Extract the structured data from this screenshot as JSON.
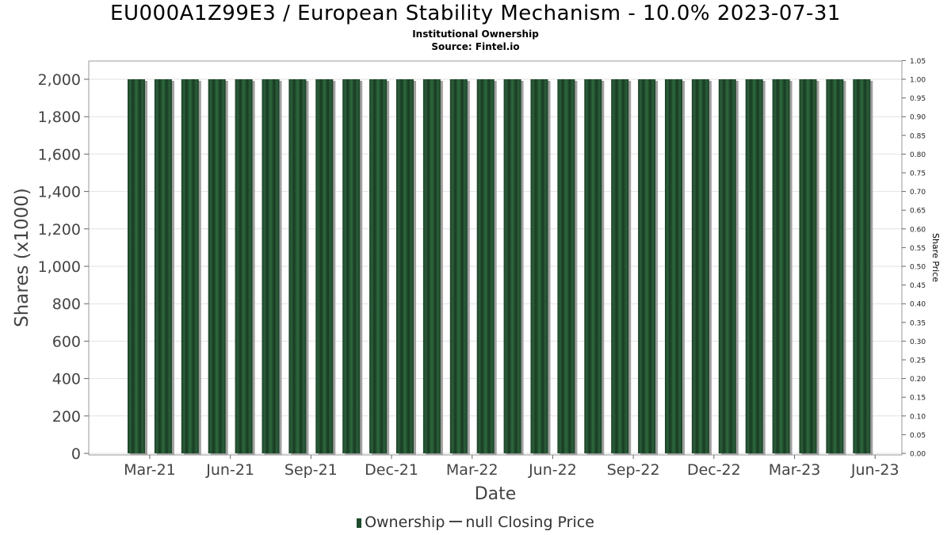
{
  "title": "EU000A1Z99E3 / European Stability Mechanism - 10.0% 2023-07-31",
  "subtitle_lines": [
    "Institutional Ownership",
    "Source: Fintel.io"
  ],
  "legend": {
    "ownership_label": "Ownership",
    "price_label": "null Closing Price"
  },
  "colors": {
    "bar": "#1d4a2a",
    "bar_highlight": "#2f6a3e",
    "bar_shadow": "#a0a0a0",
    "grid": "#e2e2e2",
    "axis": "#888888"
  },
  "chart_data": {
    "type": "bar",
    "title": "EU000A1Z99E3 / European Stability Mechanism - 10.0% 2023-07-31",
    "xlabel": "Date",
    "ylabel": "Shares (x1000)",
    "y2label": "Share Price",
    "ylim": [
      0,
      2100
    ],
    "y2lim": [
      0,
      1.05
    ],
    "y_ticks": [
      0,
      200,
      400,
      600,
      800,
      1000,
      1200,
      1400,
      1600,
      1800,
      2000
    ],
    "y_tick_labels": [
      "0",
      "200",
      "400",
      "600",
      "800",
      "1,000",
      "1,200",
      "1,400",
      "1,600",
      "1,800",
      "2,000"
    ],
    "y2_ticks": [
      0,
      0.05,
      0.1,
      0.15,
      0.2,
      0.25,
      0.3,
      0.35,
      0.4,
      0.45,
      0.5,
      0.55,
      0.6,
      0.65,
      0.7,
      0.75,
      0.8,
      0.85,
      0.9,
      0.95,
      1.0,
      1.05
    ],
    "y2_tick_labels": [
      "0.00",
      "0.05",
      "0.10",
      "0.15",
      "0.20",
      "0.25",
      "0.30",
      "0.35",
      "0.40",
      "0.45",
      "0.50",
      "0.55",
      "0.60",
      "0.65",
      "0.70",
      "0.75",
      "0.80",
      "0.85",
      "0.90",
      "0.95",
      "1.00",
      "1.05"
    ],
    "x_tick_labels": [
      "Mar-21",
      "Jun-21",
      "Sep-21",
      "Dec-21",
      "Mar-22",
      "Jun-22",
      "Sep-22",
      "Dec-22",
      "Mar-23",
      "Jun-23"
    ],
    "x_tick_positions": [
      0.5,
      3.5,
      6.5,
      9.5,
      12.5,
      15.5,
      18.5,
      21.5,
      24.5,
      27.5
    ],
    "grid": true,
    "legend_position": "bottom",
    "series": [
      {
        "name": "Ownership",
        "values": [
          2000,
          2000,
          2000,
          2000,
          2000,
          2000,
          2000,
          2000,
          2000,
          2000,
          2000,
          2000,
          2000,
          2000,
          2000,
          2000,
          2000,
          2000,
          2000,
          2000,
          2000,
          2000,
          2000,
          2000,
          2000,
          2000,
          2000,
          2000
        ]
      },
      {
        "name": "null Closing Price",
        "values": []
      }
    ]
  }
}
